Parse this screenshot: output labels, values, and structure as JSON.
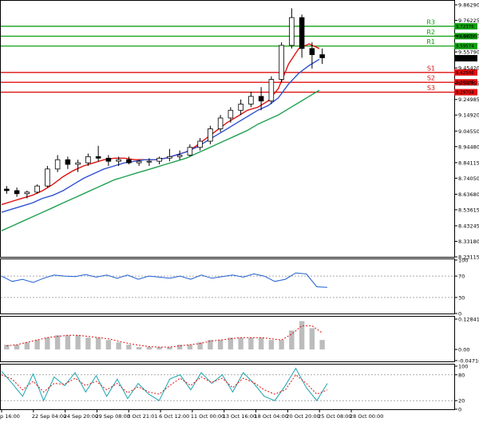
{
  "chart_data": [
    {
      "type": "candlestick",
      "title": "",
      "price_axis": {
        "ticks": [
          "9.86290",
          "9.76225",
          "9.66160",
          "9.55790",
          "9.45420",
          "9.35355",
          "9.24985",
          "9.14920",
          "9.04550",
          "8.94480",
          "8.84115",
          "8.74050",
          "8.63680",
          "8.53615",
          "8.43245",
          "8.33180",
          "8.23115"
        ],
        "range": [
          8.23115,
          9.8629
        ]
      },
      "time_axis": {
        "labels": [
          "p 16:00",
          "22 Sep 04:00",
          "24 Sep 20:00",
          "29 Sep 08:00",
          "3 Oct 21:01",
          "6 Oct 12:00",
          "11 Oct 00:00",
          "13 Oct 16:00",
          "18 Oct 04:00",
          "20 Oct 20:00",
          "25 Oct 08:00",
          "28 Oct 00:00"
        ]
      },
      "levels": [
        {
          "name": "R3",
          "value": 9.72376,
          "tag": "9.72376",
          "kind": "resistance"
        },
        {
          "name": "R2",
          "value": 9.65975,
          "tag": "9.65975",
          "kind": "resistance"
        },
        {
          "name": "R1",
          "value": 9.59574,
          "tag": "9.59574",
          "kind": "resistance"
        },
        {
          "name": "S1",
          "value": 9.42506,
          "tag": "9.42506",
          "kind": "support"
        },
        {
          "name": "S2",
          "value": 9.36105,
          "tag": "9.36105",
          "kind": "support"
        },
        {
          "name": "S3",
          "value": 9.29704,
          "tag": "9.29704",
          "kind": "support"
        }
      ],
      "current_price": "9.51690",
      "moving_averages": [
        {
          "color": "#e01010",
          "values": [
            8.57,
            8.59,
            8.61,
            8.63,
            8.66,
            8.7,
            8.75,
            8.79,
            8.82,
            8.84,
            8.86,
            8.87,
            8.87,
            8.86,
            8.86,
            8.86,
            8.87,
            8.89,
            8.91,
            8.95,
            9.0,
            9.05,
            9.1,
            9.14,
            9.18,
            9.2,
            9.24,
            9.32,
            9.48,
            9.58,
            9.61,
            9.58
          ]
        },
        {
          "color": "#3050d0",
          "values": [
            8.52,
            8.54,
            8.56,
            8.58,
            8.61,
            8.63,
            8.66,
            8.7,
            8.74,
            8.77,
            8.8,
            8.82,
            8.84,
            8.85,
            8.86,
            8.86,
            8.87,
            8.89,
            8.91,
            8.94,
            8.98,
            9.02,
            9.06,
            9.1,
            9.14,
            9.18,
            9.21,
            9.26,
            9.35,
            9.42,
            9.47,
            9.51
          ]
        },
        {
          "color": "#20a050",
          "values": [
            8.4,
            8.43,
            8.46,
            8.49,
            8.52,
            8.55,
            8.58,
            8.61,
            8.64,
            8.67,
            8.7,
            8.73,
            8.75,
            8.77,
            8.79,
            8.81,
            8.83,
            8.85,
            8.87,
            8.9,
            8.93,
            8.96,
            8.99,
            9.02,
            9.05,
            9.09,
            9.12,
            9.15,
            9.19,
            9.23,
            9.27,
            9.31
          ]
        }
      ],
      "candles": [
        [
          8.67,
          8.69,
          8.64,
          8.66
        ],
        [
          8.66,
          8.68,
          8.62,
          8.64
        ],
        [
          8.64,
          8.66,
          8.61,
          8.65
        ],
        [
          8.65,
          8.7,
          8.64,
          8.69
        ],
        [
          8.69,
          8.82,
          8.68,
          8.8
        ],
        [
          8.8,
          8.89,
          8.78,
          8.86
        ],
        [
          8.86,
          8.88,
          8.8,
          8.83
        ],
        [
          8.83,
          8.86,
          8.78,
          8.84
        ],
        [
          8.84,
          8.9,
          8.82,
          8.88
        ],
        [
          8.88,
          8.95,
          8.85,
          8.87
        ],
        [
          8.87,
          8.89,
          8.82,
          8.85
        ],
        [
          8.85,
          8.88,
          8.82,
          8.86
        ],
        [
          8.86,
          8.88,
          8.83,
          8.84
        ],
        [
          8.84,
          8.86,
          8.82,
          8.85
        ],
        [
          8.85,
          8.87,
          8.82,
          8.85
        ],
        [
          8.85,
          8.88,
          8.83,
          8.87
        ],
        [
          8.87,
          8.93,
          8.85,
          8.88
        ],
        [
          8.88,
          8.92,
          8.86,
          8.89
        ],
        [
          8.89,
          8.96,
          8.88,
          8.94
        ],
        [
          8.94,
          9.0,
          8.92,
          8.98
        ],
        [
          8.98,
          9.08,
          8.96,
          9.06
        ],
        [
          9.06,
          9.15,
          9.04,
          9.13
        ],
        [
          9.13,
          9.2,
          9.1,
          9.18
        ],
        [
          9.18,
          9.25,
          9.15,
          9.22
        ],
        [
          9.22,
          9.3,
          9.2,
          9.27
        ],
        [
          9.27,
          9.33,
          9.18,
          9.24
        ],
        [
          9.24,
          9.4,
          9.22,
          9.38
        ],
        [
          9.38,
          9.62,
          9.36,
          9.6
        ],
        [
          9.6,
          9.84,
          9.58,
          9.78
        ],
        [
          9.78,
          9.8,
          9.52,
          9.58
        ],
        [
          9.58,
          9.62,
          9.45,
          9.54
        ],
        [
          9.54,
          9.58,
          9.48,
          9.52
        ]
      ]
    },
    {
      "type": "line",
      "title": "",
      "y_ticks": [
        "100",
        "70",
        "30",
        "0"
      ],
      "range": [
        0,
        100
      ],
      "series": [
        {
          "color": "#1f5fd0",
          "values": [
            70,
            60,
            64,
            58,
            66,
            72,
            70,
            69,
            73,
            68,
            72,
            66,
            72,
            64,
            70,
            68,
            66,
            70,
            64,
            72,
            66,
            69,
            72,
            68,
            74,
            70,
            60,
            64,
            76,
            74,
            50,
            49
          ]
        }
      ]
    },
    {
      "type": "bar",
      "title": "",
      "y_ticks": [
        "0.128413",
        "0.00",
        "-0.047167"
      ],
      "range": [
        -0.047167,
        0.128413
      ],
      "values": [
        0.02,
        0.02,
        0.03,
        0.04,
        0.05,
        0.06,
        0.06,
        0.06,
        0.05,
        0.05,
        0.04,
        0.03,
        0.02,
        0.01,
        0.01,
        0.01,
        0.01,
        0.02,
        0.02,
        0.03,
        0.04,
        0.04,
        0.05,
        0.05,
        0.05,
        0.05,
        0.04,
        0.04,
        0.08,
        0.12,
        0.09,
        0.04
      ],
      "signal": [
        0.015,
        0.02,
        0.03,
        0.04,
        0.05,
        0.055,
        0.06,
        0.06,
        0.055,
        0.05,
        0.045,
        0.035,
        0.025,
        0.018,
        0.012,
        0.01,
        0.01,
        0.015,
        0.02,
        0.025,
        0.035,
        0.04,
        0.045,
        0.05,
        0.05,
        0.05,
        0.045,
        0.04,
        0.065,
        0.1,
        0.1,
        0.07
      ],
      "colors": {
        "bars": "#bcbcbc",
        "signal": "#e01010"
      }
    },
    {
      "type": "line",
      "title": "",
      "y_ticks": [
        "100",
        "80",
        "20",
        "0"
      ],
      "range": [
        0,
        100
      ],
      "series": [
        {
          "color": "#1aa5b0",
          "values": [
            88,
            60,
            30,
            82,
            20,
            75,
            55,
            85,
            40,
            78,
            30,
            70,
            25,
            60,
            35,
            20,
            70,
            80,
            45,
            85,
            60,
            80,
            40,
            85,
            60,
            30,
            20,
            55,
            95,
            50,
            20,
            60
          ]
        },
        {
          "color": "#e01010",
          "values": [
            80,
            70,
            45,
            65,
            40,
            60,
            58,
            72,
            55,
            65,
            45,
            60,
            38,
            52,
            40,
            35,
            55,
            72,
            55,
            75,
            62,
            72,
            50,
            72,
            62,
            45,
            35,
            45,
            80,
            60,
            35,
            45
          ]
        }
      ]
    }
  ]
}
